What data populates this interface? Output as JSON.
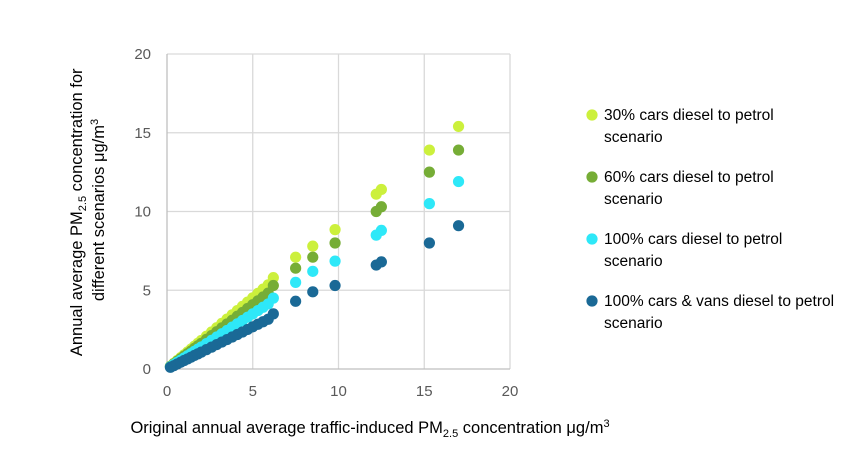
{
  "chart_data": {
    "type": "scatter",
    "xlabel": {
      "main": "Original annual average traffic-induced PM",
      "sub": "2.5",
      "tail": " concentration μg/m",
      "sup": "3"
    },
    "ylabel": {
      "line1_main": "Annual average PM",
      "line1_sub": "2.5",
      "line1_tail": " concentration for",
      "line2_main": "different scenarios μg/m",
      "line2_sup": "3"
    },
    "xlim": [
      0,
      20
    ],
    "ylim": [
      0,
      20
    ],
    "x_ticks": [
      "0",
      "5",
      "10",
      "15",
      "20"
    ],
    "y_ticks": [
      "0",
      "5",
      "10",
      "15",
      "20"
    ],
    "grid": true,
    "legend_position": "right",
    "x": [
      0.2,
      0.4,
      0.6,
      0.8,
      1.0,
      1.2,
      1.4,
      1.6,
      1.8,
      2.0,
      2.3,
      2.6,
      2.9,
      3.2,
      3.5,
      3.8,
      4.1,
      4.4,
      4.7,
      5.0,
      5.3,
      5.6,
      5.9,
      6.2,
      7.5,
      8.5,
      9.8,
      12.2,
      12.5,
      15.3,
      17.0
    ],
    "series": [
      {
        "name": "30% cars diesel to petrol scenario",
        "color": "#ccf03c",
        "values": [
          0.18,
          0.36,
          0.54,
          0.72,
          0.9,
          1.08,
          1.26,
          1.45,
          1.63,
          1.81,
          2.08,
          2.35,
          2.62,
          2.9,
          3.17,
          3.44,
          3.71,
          3.98,
          4.25,
          4.52,
          4.8,
          5.07,
          5.34,
          5.8,
          7.1,
          7.8,
          8.85,
          11.1,
          11.4,
          13.9,
          15.4
        ]
      },
      {
        "name": "60% cars diesel to petrol scenario",
        "color": "#76ad36",
        "values": [
          0.16,
          0.33,
          0.49,
          0.65,
          0.82,
          0.98,
          1.14,
          1.31,
          1.47,
          1.63,
          1.88,
          2.12,
          2.37,
          2.61,
          2.86,
          3.1,
          3.35,
          3.59,
          3.84,
          4.08,
          4.33,
          4.57,
          4.82,
          5.3,
          6.4,
          7.1,
          8.0,
          10.0,
          10.3,
          12.5,
          13.9
        ]
      },
      {
        "name": "100% cars diesel to petrol scenario",
        "color": "#2ee8f8",
        "values": [
          0.14,
          0.28,
          0.42,
          0.56,
          0.7,
          0.84,
          0.98,
          1.12,
          1.26,
          1.4,
          1.61,
          1.82,
          2.03,
          2.24,
          2.45,
          2.66,
          2.87,
          3.08,
          3.29,
          3.5,
          3.71,
          3.92,
          4.13,
          4.5,
          5.5,
          6.2,
          6.85,
          8.5,
          8.8,
          10.5,
          11.9
        ]
      },
      {
        "name": "100% cars & vans diesel to petrol scenario",
        "color": "#1a6996",
        "values": [
          0.11,
          0.21,
          0.32,
          0.43,
          0.54,
          0.64,
          0.75,
          0.86,
          0.96,
          1.07,
          1.23,
          1.39,
          1.55,
          1.71,
          1.87,
          2.03,
          2.19,
          2.35,
          2.51,
          2.68,
          2.84,
          3.0,
          3.16,
          3.5,
          4.3,
          4.9,
          5.3,
          6.6,
          6.8,
          8.0,
          9.1
        ]
      }
    ]
  }
}
